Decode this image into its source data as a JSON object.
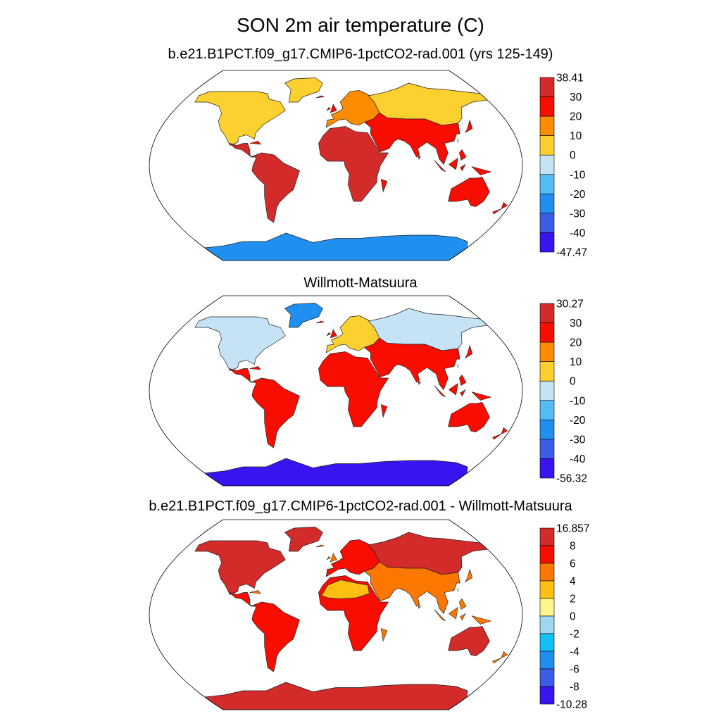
{
  "main_title": "SON 2m air temperature (C)",
  "panels": [
    {
      "title": "b.e21.B1PCT.f09_g17.CMIP6-1pctCO2-rad.001 (yrs 125-149)",
      "colorbar": {
        "labels": [
          "38.41",
          "30",
          "20",
          "10",
          "0",
          "-10",
          "-20",
          "-30",
          "-40",
          "-47.47"
        ]
      }
    },
    {
      "title": "Willmott-Matsuura",
      "colorbar": {
        "labels": [
          "30.27",
          "30",
          "20",
          "10",
          "0",
          "-10",
          "-20",
          "-30",
          "-40",
          "-56.32"
        ]
      }
    },
    {
      "title": "b.e21.B1PCT.f09_g17.CMIP6-1pctCO2-rad.001 - Willmott-Matsuura",
      "colorbar": {
        "labels": [
          "16.857",
          "8",
          "6",
          "4",
          "2",
          "0",
          "-2",
          "-4",
          "-6",
          "-8",
          "-10.28"
        ]
      }
    }
  ],
  "chart_data": [
    {
      "type": "heatmap",
      "title": "b.e21.B1PCT.f09_g17.CMIP6-1pctCO2-rad.001 (yrs 125-149)",
      "projection": "robinson",
      "levels": [
        -40,
        -30,
        -20,
        -10,
        0,
        10,
        20,
        30
      ],
      "colors": [
        "#3a14f0",
        "#3b5ee8",
        "#1f8ff0",
        "#52bdf2",
        "#c5e3f5",
        "#fcd02e",
        "#fb8c00",
        "#f90d00",
        "#d32a2a"
      ],
      "range": [
        -47.47,
        38.41
      ],
      "regions": [
        {
          "name": "North America",
          "value": 5
        },
        {
          "name": "Greenland",
          "value": 5
        },
        {
          "name": "Central America",
          "value": 32
        },
        {
          "name": "South America",
          "value": 32
        },
        {
          "name": "Africa",
          "value": 32
        },
        {
          "name": "Europe",
          "value": 12
        },
        {
          "name": "Asia",
          "value": 8
        },
        {
          "name": "South Asia",
          "value": 25
        },
        {
          "name": "Australia",
          "value": 25
        },
        {
          "name": "Antarctica",
          "value": -25
        }
      ]
    },
    {
      "type": "heatmap",
      "title": "Willmott-Matsuura",
      "projection": "robinson",
      "levels": [
        -40,
        -30,
        -20,
        -10,
        0,
        10,
        20,
        30
      ],
      "colors": [
        "#3a14f0",
        "#3b5ee8",
        "#1f8ff0",
        "#52bdf2",
        "#c5e3f5",
        "#fcd02e",
        "#fb8c00",
        "#f90d00",
        "#d32a2a"
      ],
      "range": [
        -56.32,
        30.27
      ],
      "regions": [
        {
          "name": "North America",
          "value": -5
        },
        {
          "name": "Greenland",
          "value": -22
        },
        {
          "name": "Central America",
          "value": 25
        },
        {
          "name": "South America",
          "value": 24
        },
        {
          "name": "Africa",
          "value": 26
        },
        {
          "name": "Europe",
          "value": 5
        },
        {
          "name": "Asia",
          "value": -2
        },
        {
          "name": "South Asia",
          "value": 22
        },
        {
          "name": "Australia",
          "value": 21
        },
        {
          "name": "Antarctica",
          "value": -42
        }
      ]
    },
    {
      "type": "heatmap",
      "title": "b.e21.B1PCT.f09_g17.CMIP6-1pctCO2-rad.001 - Willmott-Matsuura",
      "projection": "robinson",
      "levels": [
        -8,
        -6,
        -4,
        -2,
        0,
        2,
        4,
        6,
        8
      ],
      "colors": [
        "#3a14f0",
        "#3b5ee8",
        "#1f8ff0",
        "#12c0f5",
        "#a0d7f0",
        "#fbf78a",
        "#fcbf12",
        "#fb7700",
        "#f90d00",
        "#d32a2a"
      ],
      "range": [
        -10.28,
        16.857
      ],
      "regions": [
        {
          "name": "North America",
          "value": 9
        },
        {
          "name": "Greenland",
          "value": 10
        },
        {
          "name": "Central America",
          "value": 6
        },
        {
          "name": "South America",
          "value": 7
        },
        {
          "name": "Africa",
          "value": 6
        },
        {
          "name": "Sahara",
          "value": 3
        },
        {
          "name": "Europe",
          "value": 7
        },
        {
          "name": "Asia",
          "value": 10
        },
        {
          "name": "South Asia",
          "value": 5
        },
        {
          "name": "Australia",
          "value": 9
        },
        {
          "name": "Antarctica",
          "value": 12
        }
      ]
    }
  ]
}
